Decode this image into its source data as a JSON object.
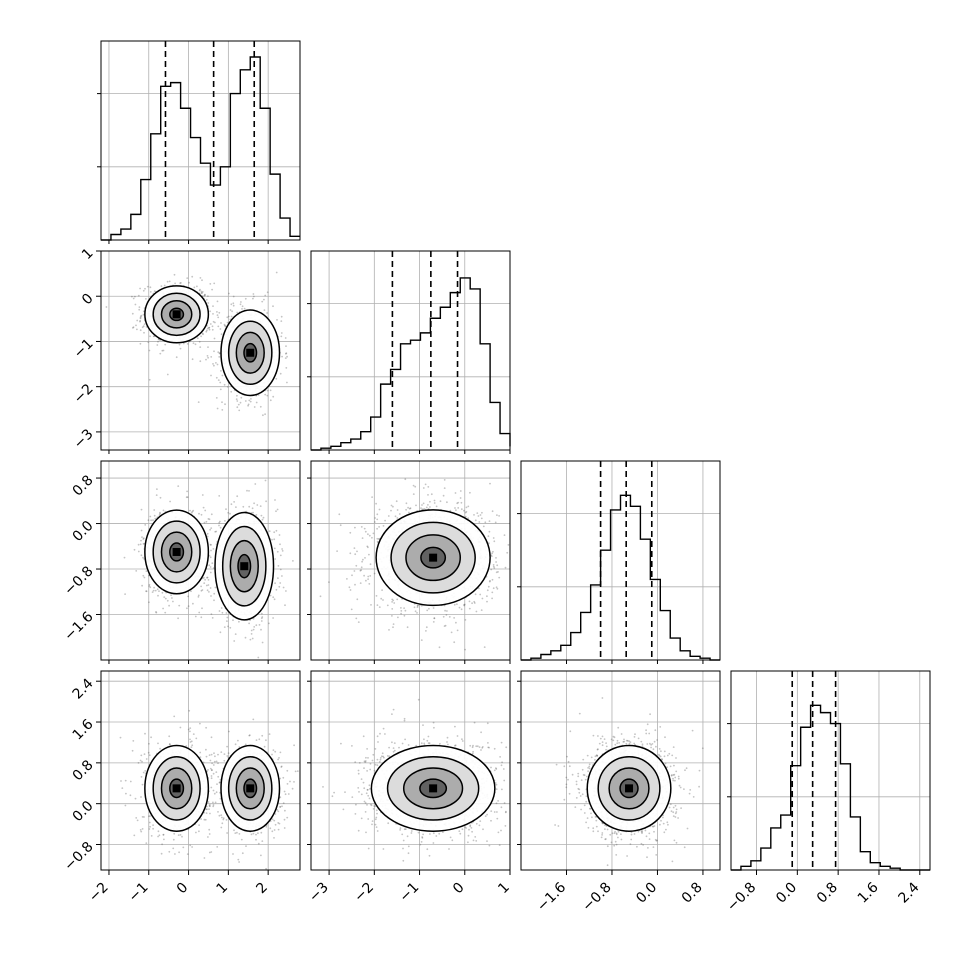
{
  "chart_data": {
    "type": "corner",
    "grid": true,
    "colors": {
      "line": "#000000",
      "grid": "#b0b0b0",
      "points": "#555555"
    },
    "dims": [
      {
        "range": [
          -2.2,
          2.8
        ],
        "ticks": [
          -2,
          -1,
          0,
          1,
          2
        ],
        "tick_labels": [
          "−2",
          "−1",
          "0",
          "1",
          "2"
        ]
      },
      {
        "range": [
          -3.4,
          1.0
        ],
        "ticks": [
          -3,
          -2,
          -1,
          0,
          1
        ],
        "tick_labels": [
          "−3",
          "−2",
          "−1",
          "0",
          "1"
        ]
      },
      {
        "range": [
          -2.4,
          1.1
        ],
        "ticks": [
          -1.6,
          -0.8,
          0.0,
          0.8
        ],
        "tick_labels": [
          "−1.6",
          "−0.8",
          "0.0",
          "0.8"
        ]
      },
      {
        "range": [
          -1.3,
          2.6
        ],
        "ticks": [
          -0.8,
          0.0,
          0.8,
          1.6,
          2.4
        ],
        "tick_labels": [
          "−0.8",
          "0.0",
          "0.8",
          "1.6",
          "2.4"
        ]
      }
    ],
    "histograms": [
      {
        "dim": 0,
        "bin_start": -2.2,
        "bin_width": 0.25,
        "counts": [
          0.0,
          0.03,
          0.06,
          0.14,
          0.33,
          0.58,
          0.84,
          0.86,
          0.72,
          0.56,
          0.42,
          0.3,
          0.4,
          0.8,
          0.93,
          1.0,
          0.72,
          0.36,
          0.12,
          0.02
        ],
        "quantiles": [
          -0.58,
          0.63,
          1.65
        ]
      },
      {
        "dim": 1,
        "bin_start": -3.4,
        "bin_width": 0.22,
        "counts": [
          0.0,
          0.01,
          0.02,
          0.04,
          0.06,
          0.1,
          0.18,
          0.36,
          0.44,
          0.58,
          0.6,
          0.64,
          0.72,
          0.78,
          0.86,
          0.94,
          0.88,
          0.58,
          0.26,
          0.09,
          0.02
        ],
        "quantiles": [
          -1.6,
          -0.75,
          -0.16
        ]
      },
      {
        "dim": 2,
        "bin_start": -2.4,
        "bin_width": 0.175,
        "counts": [
          0.0,
          0.01,
          0.03,
          0.05,
          0.08,
          0.15,
          0.26,
          0.41,
          0.6,
          0.82,
          0.9,
          0.84,
          0.66,
          0.44,
          0.27,
          0.12,
          0.05,
          0.02,
          0.01,
          0.0
        ],
        "quantiles": [
          -1.0,
          -0.55,
          -0.1
        ]
      },
      {
        "dim": 3,
        "bin_start": -1.3,
        "bin_width": 0.195,
        "counts": [
          0.0,
          0.02,
          0.05,
          0.12,
          0.23,
          0.3,
          0.57,
          0.78,
          0.9,
          0.86,
          0.8,
          0.58,
          0.29,
          0.1,
          0.04,
          0.02,
          0.01,
          0.0,
          0.0,
          0.0
        ],
        "quantiles": [
          -0.1,
          0.3,
          0.75
        ]
      }
    ],
    "scatter_panels": [
      {
        "x": 0,
        "y": 1,
        "clusters": [
          {
            "mx": -0.3,
            "my": -0.4,
            "sx": 0.38,
            "sy": 0.3,
            "w": 0.5
          },
          {
            "mx": 1.55,
            "my": -1.25,
            "sx": 0.35,
            "sy": 0.45,
            "w": 0.5
          }
        ]
      },
      {
        "x": 0,
        "y": 2,
        "clusters": [
          {
            "mx": -0.3,
            "my": -0.5,
            "sx": 0.38,
            "sy": 0.35,
            "w": 0.5
          },
          {
            "mx": 1.4,
            "my": -0.75,
            "sx": 0.35,
            "sy": 0.45,
            "w": 0.5
          }
        ]
      },
      {
        "x": 1,
        "y": 2,
        "clusters": [
          {
            "mx": -0.7,
            "my": -0.6,
            "sx": 0.6,
            "sy": 0.4,
            "w": 1.0
          }
        ]
      },
      {
        "x": 0,
        "y": 3,
        "clusters": [
          {
            "mx": -0.3,
            "my": 0.3,
            "sx": 0.38,
            "sy": 0.4,
            "w": 0.5
          },
          {
            "mx": 1.55,
            "my": 0.3,
            "sx": 0.35,
            "sy": 0.4,
            "w": 0.5
          }
        ]
      },
      {
        "x": 1,
        "y": 3,
        "clusters": [
          {
            "mx": -0.7,
            "my": 0.3,
            "sx": 0.65,
            "sy": 0.4,
            "w": 1.0
          }
        ]
      },
      {
        "x": 2,
        "y": 3,
        "clusters": [
          {
            "mx": -0.5,
            "my": 0.3,
            "sx": 0.35,
            "sy": 0.4,
            "w": 1.0
          }
        ]
      }
    ]
  }
}
